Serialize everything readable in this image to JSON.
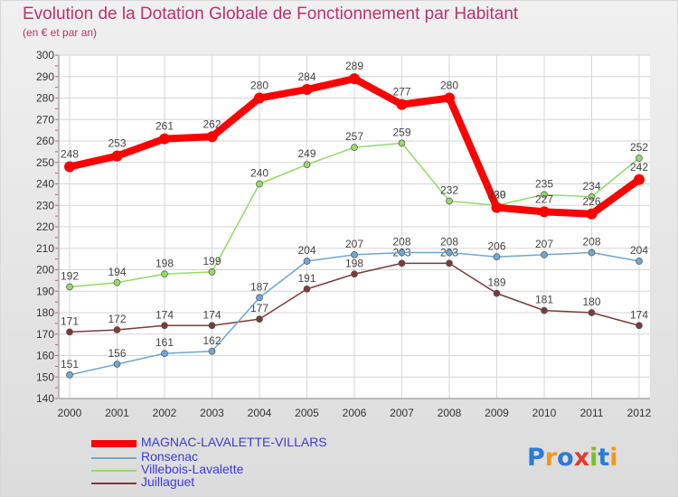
{
  "title": "Evolution de la Dotation Globale de Fonctionnement par Habitant",
  "subtitle": "(en € et par an)",
  "logo": {
    "text": "Proxiti",
    "colors": [
      "#2c7bd6",
      "#f19a1a",
      "#2c7bd6",
      "#e23b2c",
      "#7bbf2a",
      "#2c7bd6",
      "#f19a1a"
    ]
  },
  "chart_data": {
    "type": "line",
    "title": "Evolution de la Dotation Globale de Fonctionnement par Habitant",
    "subtitle": "(en € et par an)",
    "xlabel": "",
    "ylabel": "",
    "x": [
      "2000",
      "2001",
      "2002",
      "2003",
      "2004",
      "2005",
      "2006",
      "2007",
      "2008",
      "2009",
      "2010",
      "2011",
      "2012"
    ],
    "ylim": [
      140,
      300
    ],
    "yticks": [
      "140",
      "150",
      "160",
      "170",
      "180",
      "190",
      "200",
      "210",
      "220",
      "230",
      "240",
      "250",
      "260",
      "270",
      "280",
      "290",
      "300"
    ],
    "grid": true,
    "legend_position": "bottom-left",
    "series": [
      {
        "name": "MAGNAC-LAVALETTE-VILLARS",
        "color": "#ff0000",
        "values": [
          248,
          253,
          261,
          262,
          280,
          284,
          289,
          277,
          280,
          229,
          227,
          226,
          242
        ],
        "labels": [
          "248",
          "253",
          "261",
          "262",
          "280",
          "284",
          "289",
          "277",
          "280",
          "229",
          "227",
          "226",
          "242"
        ]
      },
      {
        "name": "Ronsenac",
        "color": "#6fa6d2",
        "values": [
          151,
          156,
          161,
          162,
          187,
          204,
          207,
          208,
          208,
          206,
          207,
          208,
          204
        ],
        "labels": [
          "151",
          "156",
          "161",
          "162",
          "187",
          "204",
          "207",
          "208",
          "208",
          "206",
          "207",
          "208",
          "204"
        ]
      },
      {
        "name": "Villebois-Lavalette",
        "color": "#93da66",
        "values": [
          192,
          194,
          198,
          199,
          240,
          249,
          257,
          259,
          232,
          230,
          235,
          234,
          252
        ],
        "labels": [
          "192",
          "194",
          "198",
          "199",
          "240",
          "249",
          "257",
          "259",
          "232",
          "230",
          "235",
          "234",
          "252"
        ]
      },
      {
        "name": "Juillaguet",
        "color": "#7c3a3a",
        "values": [
          171,
          172,
          174,
          174,
          177,
          191,
          198,
          203,
          203,
          189,
          181,
          180,
          174
        ],
        "labels": [
          "171",
          "172",
          "174",
          "174",
          "177",
          "191",
          "198",
          "203",
          "203",
          "189",
          "181",
          "180",
          "174"
        ]
      }
    ]
  }
}
